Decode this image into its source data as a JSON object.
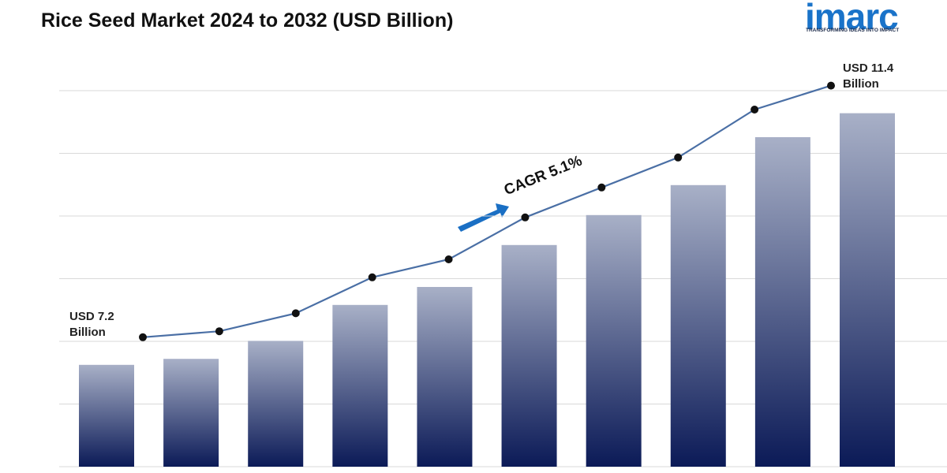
{
  "chart_data": {
    "type": "bar",
    "title": "Rice Seed Market 2024 to 2032 (USD Billion)",
    "logo": "imarc",
    "tagline": "TRANSFORMING IDEAS INTO IMPACT",
    "categories": [
      null,
      null,
      null,
      null,
      null,
      null,
      null,
      null,
      null,
      null
    ],
    "values": [
      7.2,
      7.3,
      7.6,
      8.2,
      8.5,
      9.2,
      9.7,
      10.2,
      11.0,
      11.4
    ],
    "value_labels": [
      "USD 7.2 Billion",
      null,
      null,
      null,
      null,
      null,
      null,
      null,
      null,
      "USD 11.4 Billion"
    ],
    "annotation": "CAGR  5.1%",
    "bar_gradient": [
      "#a8b0c7",
      "#0b1a57"
    ],
    "line_color": "#4a6fa5",
    "grid": true
  }
}
